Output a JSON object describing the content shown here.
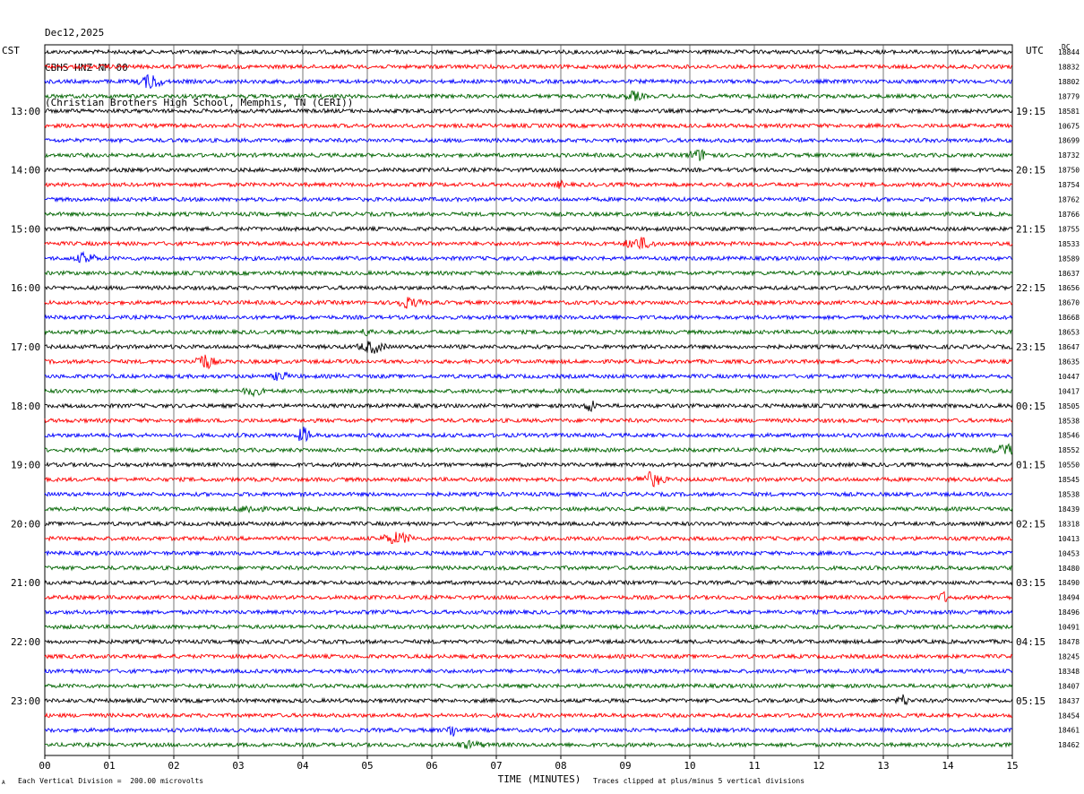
{
  "header": {
    "date": "Dec12,2025",
    "station": "CBHS HNZ NM 00",
    "location": "(Christian Brothers High School, Memphis, TN (CERI))"
  },
  "left_tz": "CST",
  "right_tz": "UTC",
  "dc_label": "DC",
  "footer": {
    "scale": "Each Vertical Division =  200.00 microvolts",
    "clip": "Traces clipped at plus/minus 5 vertical divisions",
    "corner_mark": "A"
  },
  "chart_data": {
    "type": "line",
    "title": "",
    "xlabel": "TIME (MINUTES)",
    "ylabel": "",
    "xlim": [
      0,
      15
    ],
    "x_ticks": [
      "00",
      "01",
      "02",
      "03",
      "04",
      "05",
      "06",
      "07",
      "08",
      "09",
      "10",
      "11",
      "12",
      "13",
      "14",
      "15"
    ],
    "grid": "vertical lines each minute",
    "trace_colors": [
      "#000000",
      "#ff0000",
      "#0000ff",
      "#006400"
    ],
    "left_time_labels": [
      "13:00",
      "14:00",
      "15:00",
      "16:00",
      "17:00",
      "18:00",
      "19:00",
      "20:00",
      "21:00",
      "22:00",
      "23:00"
    ],
    "right_time_labels": [
      "19:15",
      "20:15",
      "21:15",
      "22:15",
      "23:15",
      "00:15",
      "01:15",
      "02:15",
      "03:15",
      "04:15",
      "05:15"
    ],
    "dc_offsets": [
      "18844",
      "18832",
      "18802",
      "18779",
      "18581",
      "10675",
      "18699",
      "18732",
      "18750",
      "18754",
      "18762",
      "18766",
      "18755",
      "18533",
      "18589",
      "18637",
      "18656",
      "18670",
      "18668",
      "18653",
      "18647",
      "18635",
      "10447",
      "10417",
      "18505",
      "18538",
      "18546",
      "18552",
      "10550",
      "18545",
      "18538",
      "18439",
      "18318",
      "10413",
      "10453",
      "18480",
      "18490",
      "18494",
      "18496",
      "10491",
      "18478",
      "18245",
      "18348",
      "18407",
      "18437",
      "18454",
      "18461",
      "18462"
    ]
  }
}
